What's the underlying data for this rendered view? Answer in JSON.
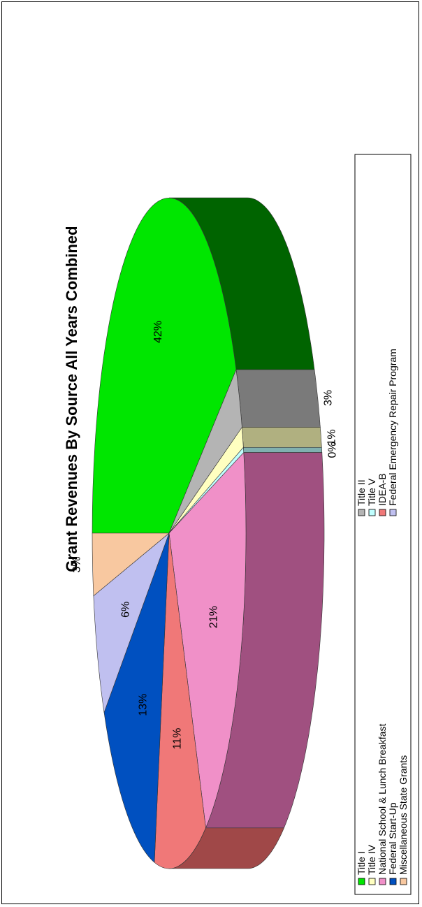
{
  "chart_data": {
    "type": "pie",
    "title": "Grant Revenues By Source All Years Combined",
    "slices": [
      {
        "name": "Title I",
        "value": 42,
        "label": "42%",
        "color": "#00e600",
        "side_color": "#006400"
      },
      {
        "name": "Title II",
        "value": 3,
        "label": "3%",
        "color": "#b4b4b4",
        "side_color": "#7a7a7a"
      },
      {
        "name": "Title IV",
        "value": 1,
        "label": "1%",
        "color": "#ffffc0",
        "side_color": "#b0b080"
      },
      {
        "name": "Title V",
        "value": 0,
        "label": "0%",
        "color": "#c0ffff",
        "side_color": "#80b0b0"
      },
      {
        "name": "National School & Lunch Breakfast",
        "value": 21,
        "label": "21%",
        "color": "#f090c8",
        "side_color": "#a05080"
      },
      {
        "name": "IDEA-B",
        "value": 11,
        "label": "11%",
        "color": "#f07878",
        "side_color": "#a04848"
      },
      {
        "name": "Federal Start-Up",
        "value": 13,
        "label": "13%",
        "color": "#0050c0",
        "side_color": "#003070"
      },
      {
        "name": "Federal Emergency Repair Program",
        "value": 6,
        "label": "6%",
        "color": "#c0c0f0",
        "side_color": "#8080a8"
      },
      {
        "name": "Miscellaneous State Grants",
        "value": 3,
        "label": "3%",
        "color": "#f8c8a0",
        "side_color": "#a08060"
      }
    ],
    "legend": {
      "placement": "bottom",
      "entries": [
        "Title I",
        "Title IV",
        "National School & Lunch Breakfast",
        "Federal Start-Up",
        "Miscellaneous State Grants",
        "Title II",
        "Title V",
        "IDEA-B",
        "Federal Emergency Repair Program"
      ]
    }
  }
}
